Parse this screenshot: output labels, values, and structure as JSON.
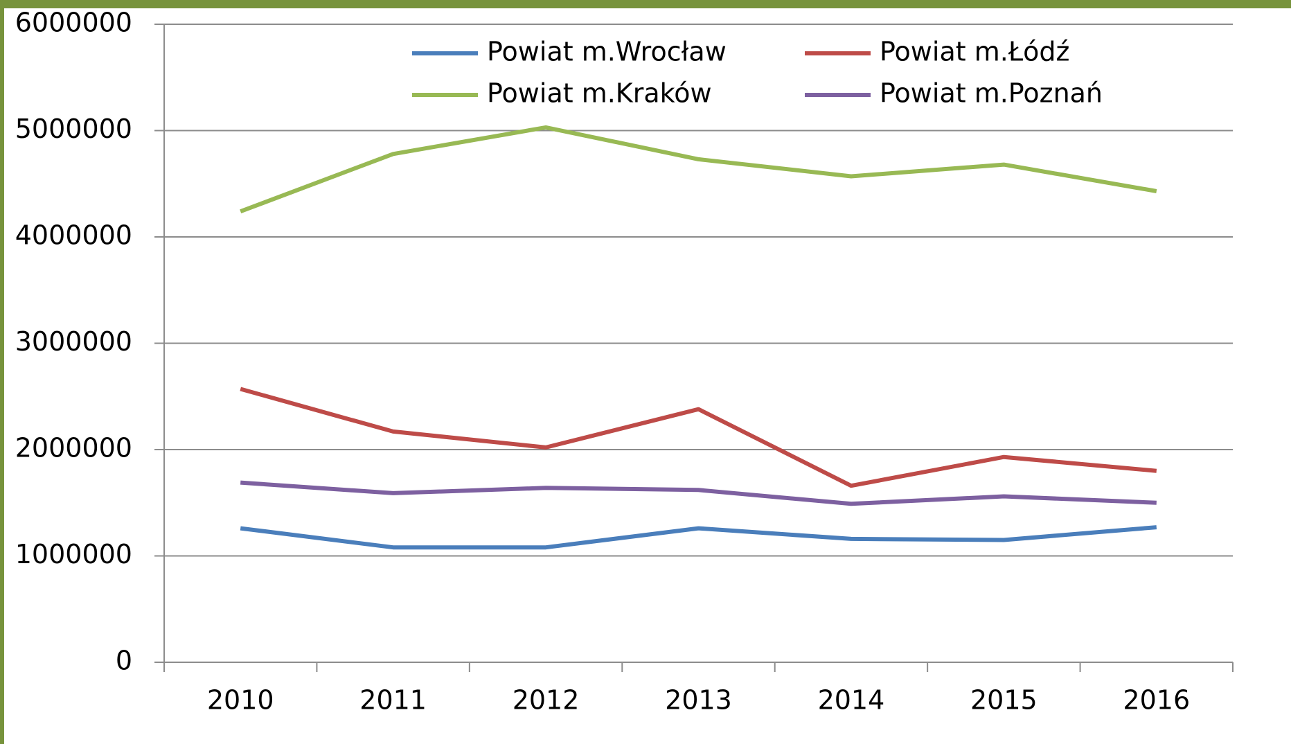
{
  "chart_data": {
    "type": "line",
    "categories": [
      "2010",
      "2011",
      "2012",
      "2013",
      "2014",
      "2015",
      "2016"
    ],
    "series": [
      {
        "name": "Powiat m.Wrocław",
        "color": "#4a7ebb",
        "values": [
          1260000,
          1080000,
          1080000,
          1260000,
          1160000,
          1150000,
          1270000
        ]
      },
      {
        "name": "Powiat m.Łódź",
        "color": "#be4b48",
        "values": [
          2570000,
          2170000,
          2020000,
          2380000,
          1660000,
          1930000,
          1800000
        ]
      },
      {
        "name": "Powiat m.Kraków",
        "color": "#98b954",
        "values": [
          4240000,
          4780000,
          5030000,
          4730000,
          4570000,
          4680000,
          4430000
        ]
      },
      {
        "name": "Powiat m.Poznań",
        "color": "#7d60a0",
        "values": [
          1690000,
          1590000,
          1640000,
          1620000,
          1490000,
          1560000,
          1500000
        ]
      }
    ],
    "ylim": [
      0,
      6000000
    ],
    "yticks": [
      0,
      1000000,
      2000000,
      3000000,
      4000000,
      5000000,
      6000000
    ],
    "grid": true,
    "legend": "top"
  }
}
